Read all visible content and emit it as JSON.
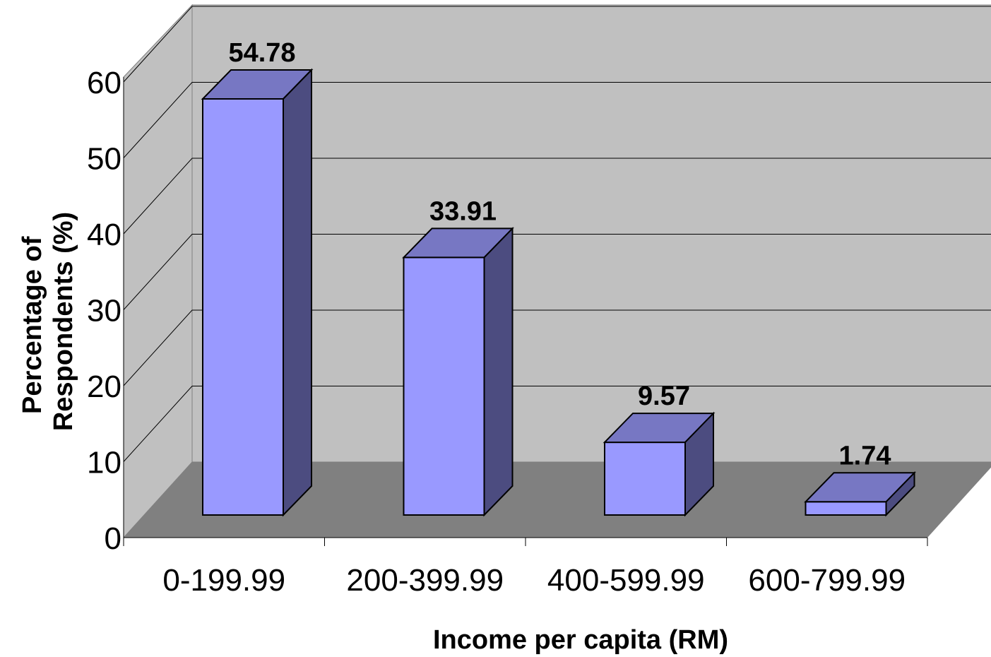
{
  "chart_data": {
    "type": "bar",
    "categories": [
      "0-199.99",
      "200-399.99",
      "400-599.99",
      "600-799.99"
    ],
    "values": [
      54.78,
      33.91,
      9.57,
      1.74
    ],
    "data_labels": [
      "54.78",
      "33.91",
      "9.57",
      "1.74"
    ],
    "ylim": [
      0,
      60
    ],
    "yticks": [
      0,
      10,
      20,
      30,
      40,
      50,
      60
    ],
    "ylabel_lines": [
      "Percentage of",
      "Respondents (%)"
    ],
    "xlabel": "Income per capita (RM)",
    "grid": true,
    "three_d": true,
    "legend": "none",
    "colors": {
      "bar_front": "#9999ff",
      "bar_top": "#7777c3",
      "bar_side": "#4c4c80",
      "back_wall": "#c0c0c0",
      "side_wall": "#c0c0c0",
      "floor": "#808080",
      "gridline": "#000000"
    }
  }
}
